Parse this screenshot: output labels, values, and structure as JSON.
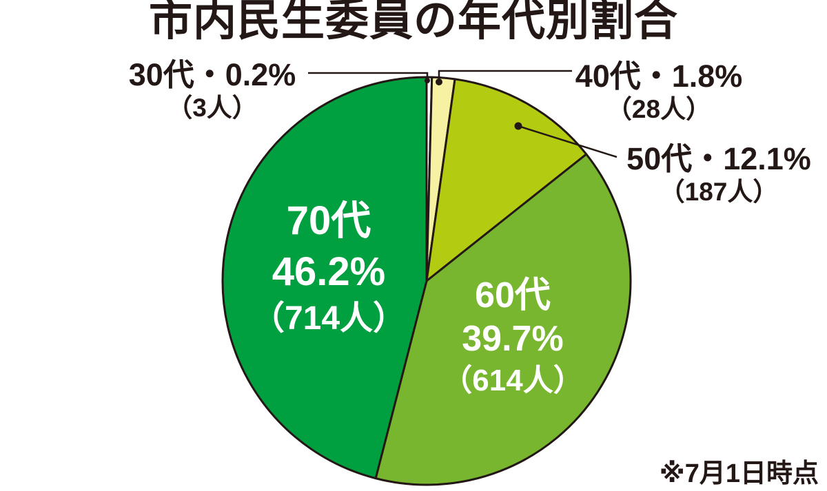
{
  "page": {
    "title": "市内民生委員の年代別割合",
    "footnote": "※7月1日時点"
  },
  "colors": {
    "text": "#231815",
    "outline": "#231815",
    "slice_30s": "#ffffff",
    "slice_40s": "#f7f2a3",
    "slice_50s": "#b3cb11",
    "slice_60s": "#77b62e",
    "slice_70s": "#009f40"
  },
  "chart_data": {
    "type": "pie",
    "title": "市内民生委員の年代別割合",
    "note": "※7月1日時点",
    "start_angle_deg": 0,
    "direction": "clockwise",
    "legend_position": "none",
    "visual_min_deg": 1.5,
    "slices": [
      {
        "key": "30s",
        "label": "30代",
        "percent": 0.2,
        "count": 3,
        "display": "30代・0.2%",
        "percent_display": "0.2%",
        "count_display": "（3人）",
        "color": "#ffffff",
        "label_placement": "outside-top-left"
      },
      {
        "key": "40s",
        "label": "40代",
        "percent": 1.8,
        "count": 28,
        "display": "40代・1.8%",
        "percent_display": "1.8%",
        "count_display": "（28人）",
        "color": "#f7f2a3",
        "label_placement": "outside-top-right"
      },
      {
        "key": "50s",
        "label": "50代",
        "percent": 12.1,
        "count": 187,
        "display": "50代・12.1%",
        "percent_display": "12.1%",
        "count_display": "（187人）",
        "color": "#b3cb11",
        "label_placement": "outside-right"
      },
      {
        "key": "60s",
        "label": "60代",
        "percent": 39.7,
        "count": 614,
        "display": "60代・39.7%",
        "percent_display": "39.7%",
        "count_display": "（614人）",
        "color": "#77b62e",
        "label_placement": "inside"
      },
      {
        "key": "70s",
        "label": "70代",
        "percent": 46.2,
        "count": 714,
        "display": "70代・46.2%",
        "percent_display": "46.2%",
        "count_display": "（714人）",
        "color": "#009f40",
        "label_placement": "inside"
      }
    ]
  }
}
